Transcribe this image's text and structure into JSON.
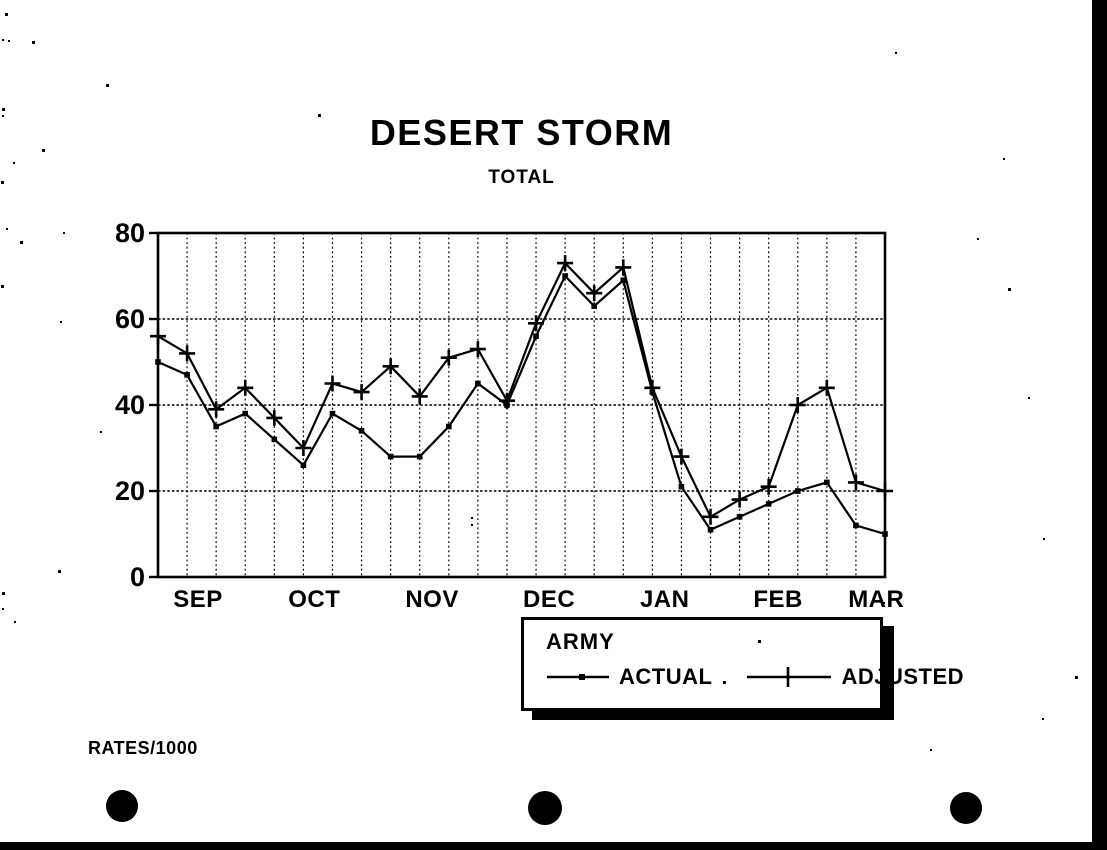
{
  "page": {
    "title": "DESERT STORM",
    "subtitle": "TOTAL",
    "footnote": "RATES/1000"
  },
  "legend": {
    "title": "ARMY",
    "entries": [
      {
        "label": "ACTUAL",
        "marker": "dot"
      },
      {
        "label": "ADJUSTED",
        "marker": "plus"
      }
    ]
  },
  "chart_data": {
    "type": "line",
    "title": "DESERT STORM",
    "subtitle": "TOTAL",
    "ylabel": "RATES/1000",
    "x_unit": "weeks",
    "categories_months": [
      "SEP",
      "OCT",
      "NOV",
      "DEC",
      "JAN",
      "FEB",
      "MAR"
    ],
    "month_positions_pct": [
      5.5,
      21.5,
      37.7,
      53.8,
      69.7,
      85.3,
      98.8
    ],
    "yticks": [
      0,
      20,
      40,
      60,
      80
    ],
    "ylim": [
      0,
      80
    ],
    "grid": {
      "vertical_divisions": 25,
      "horizontal_at": [
        20,
        40,
        60
      ]
    },
    "legend_title": "ARMY",
    "legend_position": "bottom",
    "series": [
      {
        "name": "ACTUAL",
        "marker": "dot",
        "values": [
          50,
          47,
          35,
          38,
          32,
          26,
          38,
          34,
          28,
          28,
          35,
          45,
          40,
          56,
          70,
          63,
          69,
          43,
          21,
          11,
          14,
          17,
          20,
          22,
          12,
          10
        ]
      },
      {
        "name": "ADJUSTED",
        "marker": "plus",
        "values": [
          56,
          52,
          39,
          44,
          37,
          30,
          45,
          43,
          49,
          42,
          51,
          53,
          41,
          59,
          73,
          66,
          72,
          44,
          28,
          14,
          18,
          21,
          40,
          44,
          22,
          20
        ]
      }
    ]
  },
  "colors": {
    "ink": "#000000",
    "paper": "#ffffff"
  }
}
